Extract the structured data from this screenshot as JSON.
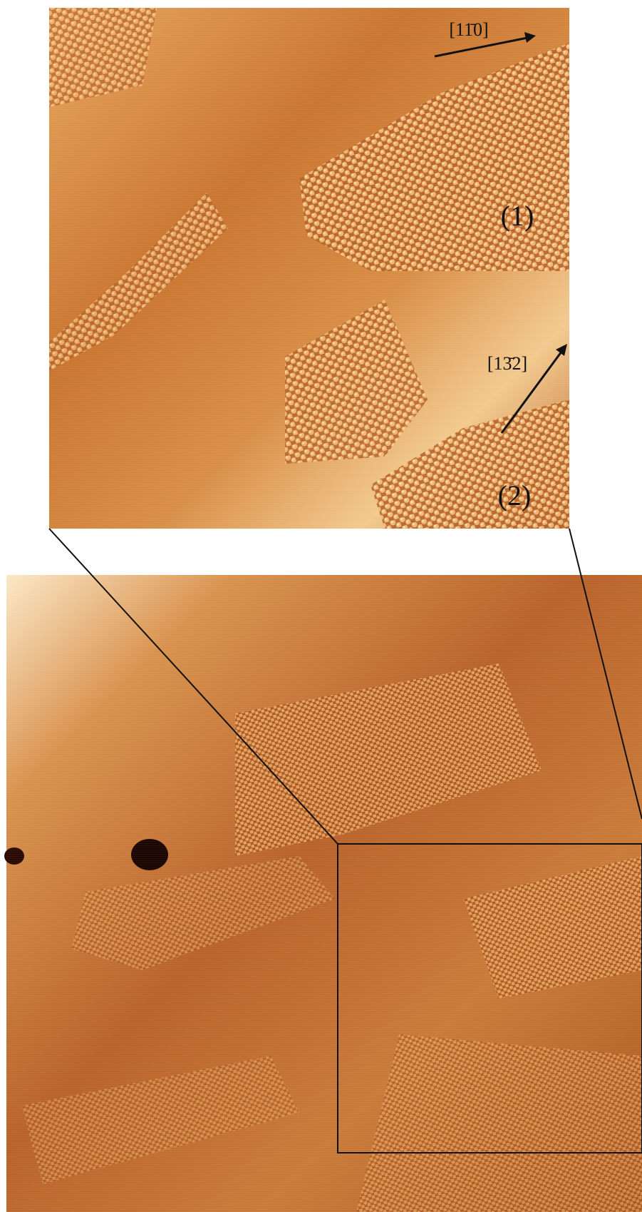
{
  "annotations": {
    "direction_1": "[11̄0]",
    "direction_2": "[13̄2]",
    "region_1": "(1)",
    "region_2": "(2)"
  }
}
